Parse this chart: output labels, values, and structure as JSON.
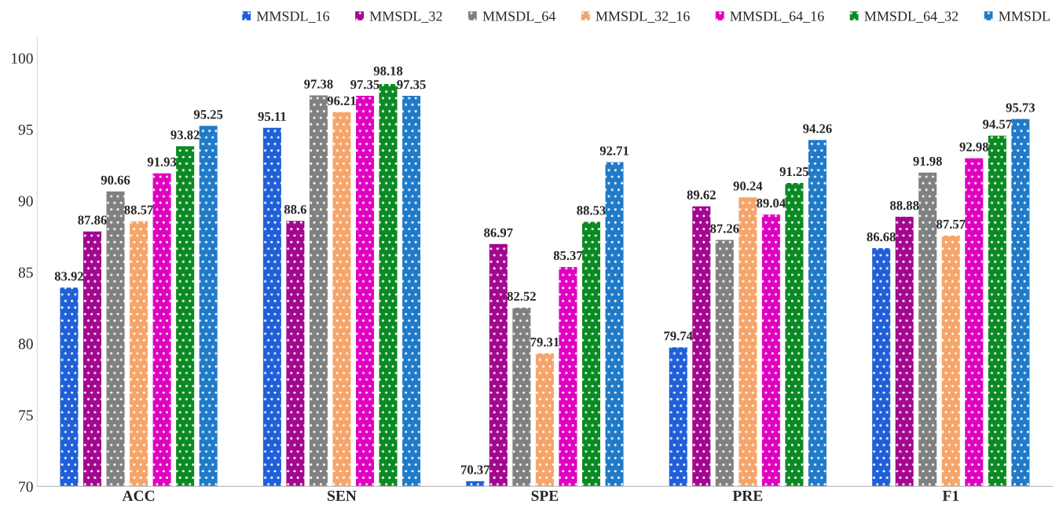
{
  "chart_data": {
    "type": "bar",
    "categories": [
      "ACC",
      "SEN",
      "SPE",
      "PRE",
      "F1"
    ],
    "series": [
      {
        "name": "MMSDL_16",
        "color": "#1f5fd8",
        "values": [
          83.92,
          95.11,
          70.37,
          79.74,
          86.68
        ]
      },
      {
        "name": "MMSDL_32",
        "color": "#a3078f",
        "values": [
          87.86,
          88.6,
          86.97,
          89.62,
          88.88
        ]
      },
      {
        "name": "MMSDL_64",
        "color": "#808080",
        "values": [
          90.66,
          97.38,
          82.52,
          87.26,
          91.98
        ]
      },
      {
        "name": "MMSDL_32_16",
        "color": "#f6a56a",
        "values": [
          88.57,
          96.21,
          79.31,
          90.24,
          87.57
        ]
      },
      {
        "name": "MMSDL_64_16",
        "color": "#e000c0",
        "values": [
          91.93,
          97.35,
          85.37,
          89.04,
          92.98
        ]
      },
      {
        "name": "MMSDL_64_32",
        "color": "#0a8a22",
        "values": [
          93.82,
          98.18,
          88.53,
          91.25,
          94.57
        ]
      },
      {
        "name": "MMSDL",
        "color": "#1f7ac8",
        "values": [
          95.25,
          97.35,
          92.71,
          94.26,
          95.73
        ]
      }
    ],
    "ylim": [
      70,
      101.5
    ],
    "yticks": [
      70,
      75,
      80,
      85,
      90,
      95,
      100
    ],
    "data_labels": true,
    "legend": "top",
    "grid": false
  }
}
